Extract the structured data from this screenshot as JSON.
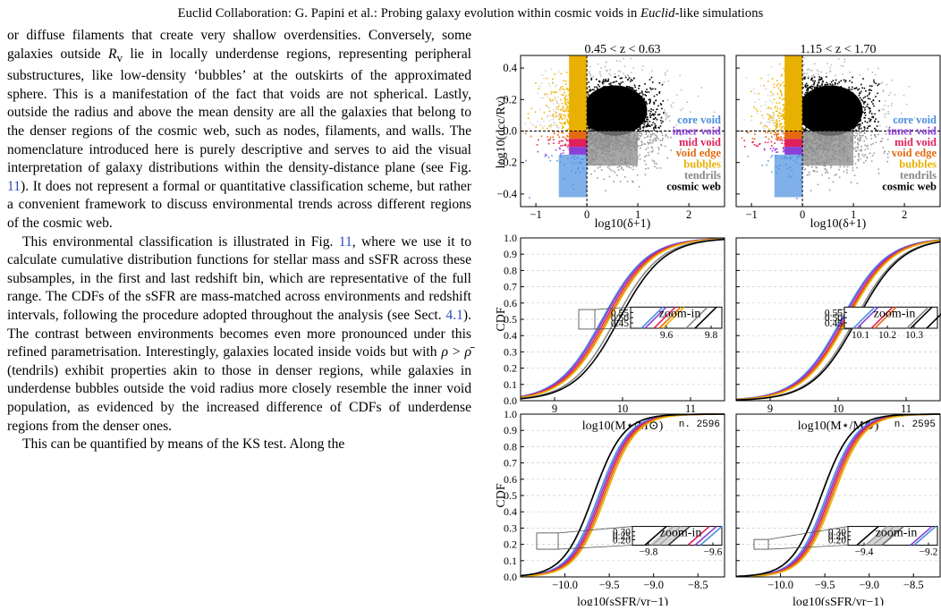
{
  "header": {
    "prefix": "Euclid Collaboration: G. Papini et al.: Probing galaxy evolution within cosmic voids in ",
    "italic": "Euclid",
    "suffix": "-like simulations"
  },
  "body": {
    "p1": [
      {
        "t": "or diffuse filaments that create very shallow overdensities. Conversely, some galaxies outside "
      },
      {
        "t": "R",
        "i": true
      },
      {
        "t": "v",
        "sub": true
      },
      {
        "t": " lie in locally underdense regions, representing peripheral substructures, like low-density ‘bubbles’ at the outskirts of the approximated sphere. This is a manifestation of the fact that voids are not spherical. Lastly, outside the radius and above the mean density are all the galaxies that belong to the denser regions of the cosmic web, such as nodes, filaments, and walls. The nomenclature introduced here is purely descriptive and serves to aid the visual interpretation of galaxy distributions within the density-distance plane (see Fig. "
      },
      {
        "t": "11",
        "ref": true
      },
      {
        "t": "). It does not represent a formal or quantitative classification scheme, but rather a convenient framework to discuss environmental trends across different regions of the cosmic web."
      }
    ],
    "p2": [
      {
        "t": "This environmental classification is illustrated in Fig. "
      },
      {
        "t": "11",
        "ref": true
      },
      {
        "t": ", where we use it to calculate cumulative distribution functions for stellar mass and sSFR across these subsamples, in the first and last redshift bin, which are representative of the full range. The CDFs of the sSFR are mass-matched across environments and redshift intervals, following the procedure adopted throughout the analysis (see Sect. "
      },
      {
        "t": "4.1",
        "ref": true
      },
      {
        "t": "). The contrast between environments becomes even more pronounced under this refined parametrisation. Interestingly, galaxies located inside voids but with "
      },
      {
        "t": "ρ",
        "i": true
      },
      {
        "t": " > "
      },
      {
        "t": "ρ̄",
        "i": true
      },
      {
        "t": " (tendrils) exhibit properties akin to those in denser regions, while galaxies in underdense bubbles outside the void radius more closely resemble the inner void population, as evidenced by the increased difference of CDFs of underdense regions from the denser ones."
      }
    ],
    "p3": [
      {
        "t": "This can be quantified by means of the KS test. Along the"
      }
    ]
  },
  "figure": {
    "top_titles": [
      "0.45 < z < 0.63",
      "1.15 < z < 1.70"
    ],
    "top_ylabel": "log10(dcc/Rv)",
    "top_xlabel": "log10(δ+1)",
    "top_yticks": [
      "0.4",
      "0.2",
      "0.0",
      "−0.2",
      "−0.4"
    ],
    "top_xticks": [
      "−1",
      "0",
      "1",
      "2"
    ],
    "legend": [
      {
        "label": "core void",
        "color": "#4a8fe0"
      },
      {
        "label": "inner void",
        "color": "#8a3fd8"
      },
      {
        "label": "mid void",
        "color": "#e0205a"
      },
      {
        "label": "void edge",
        "color": "#e46a10"
      },
      {
        "label": "bubbles",
        "color": "#e8b000"
      },
      {
        "label": "tendrils",
        "color": "#888888"
      },
      {
        "label": "cosmic web",
        "color": "#000000"
      }
    ],
    "cdf_ylabel": "CDF",
    "cdf_yticks": [
      "1.0",
      "0.9",
      "0.8",
      "0.7",
      "0.6",
      "0.5",
      "0.4",
      "0.3",
      "0.2",
      "0.1",
      "0.0"
    ],
    "mass_xlabel": "log10(M⋆/M⊙)",
    "mass_xticks": [
      "9",
      "10",
      "11"
    ],
    "ssfr_xlabel": "log10(sSFR/yr−1)",
    "ssfr_xticks": [
      "−10.0",
      "−9.5",
      "−9.0",
      "−8.5"
    ],
    "zoom_label": "zoom-in",
    "mass_zoom_left": {
      "yticks": [
        "0.55",
        "0.50",
        "0.45"
      ],
      "xticks": [
        "9.6",
        "9.8"
      ]
    },
    "mass_zoom_right": {
      "yticks": [
        "0.55",
        "0.50",
        "0.45"
      ],
      "xticks": [
        "10.1",
        "10.2",
        "10.3"
      ]
    },
    "ssfr_zoom_left": {
      "yticks": [
        "0.30",
        "0.25",
        "0.20"
      ],
      "xticks": [
        "−9.8",
        "−9.6"
      ]
    },
    "ssfr_zoom_right": {
      "yticks": [
        "0.30",
        "0.25",
        "0.20"
      ],
      "xticks": [
        "−9.4",
        "−9.2"
      ]
    },
    "n_left": "n. 2596",
    "n_right": "n. 2595"
  },
  "chart_data": [
    {
      "type": "scatter",
      "panels": [
        "0.45 < z < 0.63",
        "1.15 < z < 1.70"
      ],
      "xlabel": "log10(δ+1)",
      "ylabel": "log10(dcc/Rv)",
      "xlim": [
        -1.3,
        2.7
      ],
      "ylim": [
        -0.48,
        0.48
      ],
      "reference_lines": {
        "x": 0,
        "y": 0
      },
      "regions": [
        {
          "name": "core void",
          "x": [
            -1.3,
            0
          ],
          "y": [
            -0.48,
            -0.15
          ]
        },
        {
          "name": "inner void",
          "x": [
            -1.3,
            0
          ],
          "y": [
            -0.15,
            -0.1
          ]
        },
        {
          "name": "mid void",
          "x": [
            -1.3,
            0
          ],
          "y": [
            -0.1,
            -0.05
          ]
        },
        {
          "name": "void edge",
          "x": [
            -1.3,
            0
          ],
          "y": [
            -0.05,
            0
          ]
        },
        {
          "name": "bubbles",
          "x": [
            -1.3,
            0
          ],
          "y": [
            0,
            0.48
          ]
        },
        {
          "name": "tendrils",
          "x": [
            0,
            2.7
          ],
          "y": [
            -0.48,
            0
          ]
        },
        {
          "name": "cosmic web",
          "x": [
            0,
            2.7
          ],
          "y": [
            0,
            0.48
          ]
        }
      ],
      "legend": "right"
    },
    {
      "type": "line",
      "panels": [
        "0.45 < z < 0.63",
        "1.15 < z < 1.70"
      ],
      "xlabel": "log10(M⋆/M⊙)",
      "ylabel": "CDF",
      "xlim": [
        8.5,
        11.5
      ],
      "ylim": [
        0,
        1
      ],
      "series_medians_left": {
        "core void": 9.7,
        "inner void": 9.72,
        "mid void": 9.75,
        "void edge": 9.78,
        "bubbles": 9.8,
        "tendrils": 9.9,
        "cosmic web": 9.95
      },
      "series_medians_right": {
        "core void": 10.05,
        "inner void": 10.07,
        "mid void": 10.1,
        "void edge": 10.12,
        "bubbles": 10.14,
        "tendrils": 10.25,
        "cosmic web": 10.28
      },
      "grid": "horizontal dashed"
    },
    {
      "type": "line",
      "panels": [
        "0.45 < z < 0.63",
        "1.15 < z < 1.70"
      ],
      "xlabel": "log10(sSFR/yr−1)",
      "ylabel": "CDF",
      "xlim": [
        -10.5,
        -8.2
      ],
      "ylim": [
        0,
        1
      ],
      "annotations": [
        "n. 2596",
        "n. 2595"
      ],
      "grid": "horizontal dashed"
    }
  ]
}
